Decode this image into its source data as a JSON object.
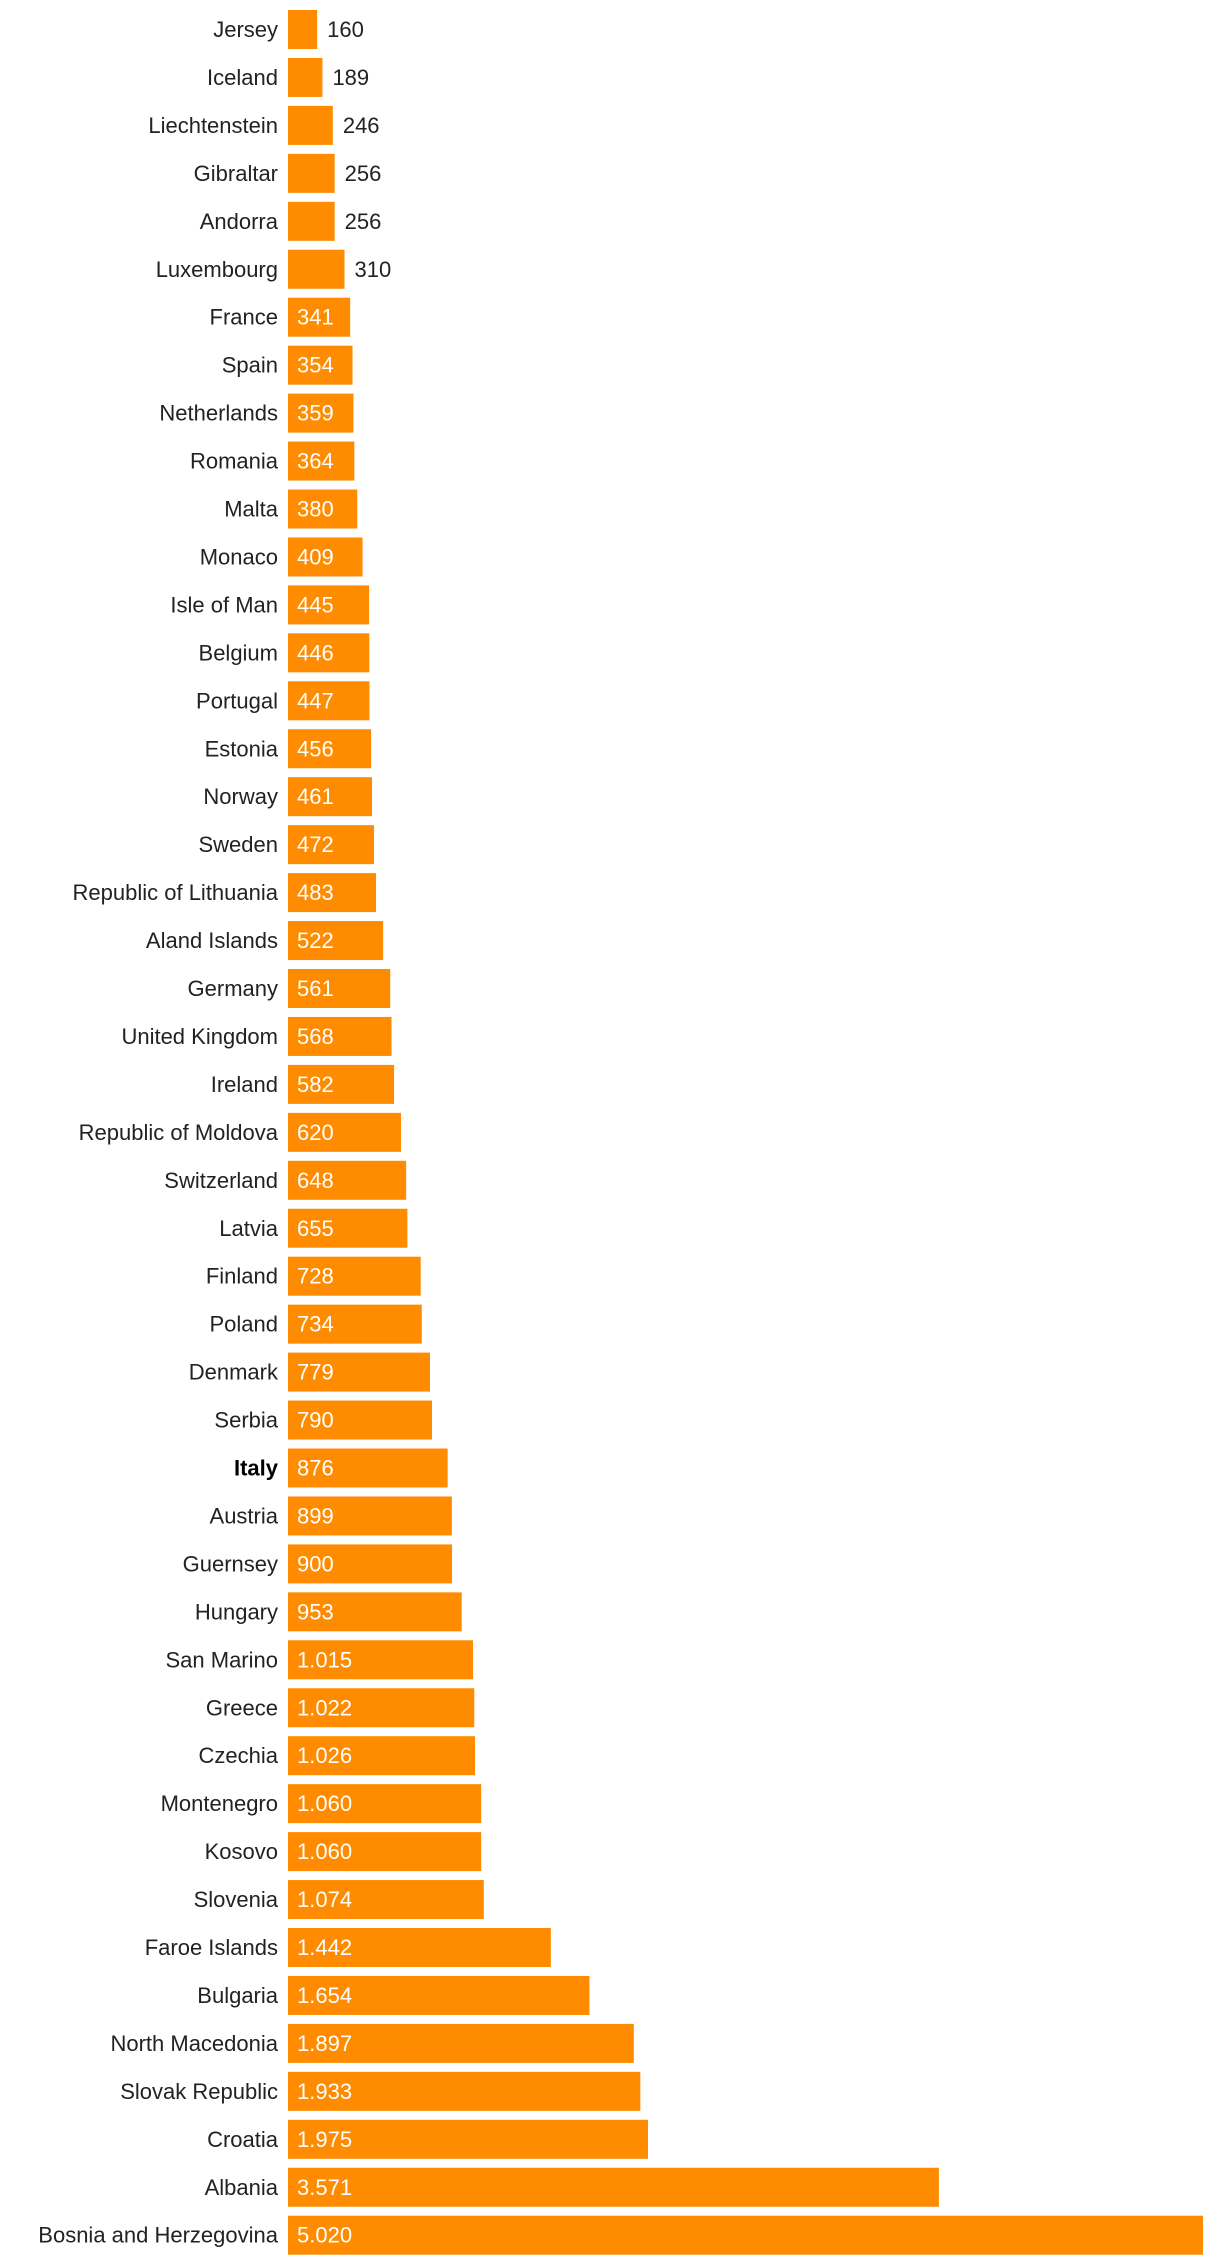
{
  "chart_data": {
    "type": "bar",
    "orientation": "horizontal",
    "title": "",
    "xlabel": "",
    "ylabel": "",
    "grid": false,
    "bar_color": "#FF8C00",
    "inside_label_color": "#FFFFFF",
    "outside_label_color": "#222222",
    "highlight_category": "Italy",
    "xlim": [
      0,
      5020
    ],
    "categories": [
      "Jersey",
      "Iceland",
      "Liechtenstein",
      "Gibraltar",
      "Andorra",
      "Luxembourg",
      "France",
      "Spain",
      "Netherlands",
      "Romania",
      "Malta",
      "Monaco",
      "Isle of Man",
      "Belgium",
      "Portugal",
      "Estonia",
      "Norway",
      "Sweden",
      "Republic of Lithuania",
      "Aland Islands",
      "Germany",
      "United Kingdom",
      "Ireland",
      "Republic of Moldova",
      "Switzerland",
      "Latvia",
      "Finland",
      "Poland",
      "Denmark",
      "Serbia",
      "Italy",
      "Austria",
      "Guernsey",
      "Hungary",
      "San Marino",
      "Greece",
      "Czechia",
      "Montenegro",
      "Kosovo",
      "Slovenia",
      "Faroe Islands",
      "Bulgaria",
      "North Macedonia",
      "Slovak Republic",
      "Croatia",
      "Albania",
      "Bosnia and Herzegovina"
    ],
    "values": [
      160,
      189,
      246,
      256,
      256,
      310,
      341,
      354,
      359,
      364,
      380,
      409,
      445,
      446,
      447,
      456,
      461,
      472,
      483,
      522,
      561,
      568,
      582,
      620,
      648,
      655,
      728,
      734,
      779,
      790,
      876,
      899,
      900,
      953,
      1015,
      1022,
      1026,
      1060,
      1060,
      1074,
      1442,
      1654,
      1897,
      1933,
      1975,
      3571,
      5020
    ],
    "value_labels": [
      "160",
      "189",
      "246",
      "256",
      "256",
      "310",
      "341",
      "354",
      "359",
      "364",
      "380",
      "409",
      "445",
      "446",
      "447",
      "456",
      "461",
      "472",
      "483",
      "522",
      "561",
      "568",
      "582",
      "620",
      "648",
      "655",
      "728",
      "734",
      "779",
      "790",
      "876",
      "899",
      "900",
      "953",
      "1.015",
      "1.022",
      "1.026",
      "1.060",
      "1.060",
      "1.074",
      "1.442",
      "1.654",
      "1.897",
      "1.933",
      "1.975",
      "3.571",
      "5.020"
    ]
  }
}
